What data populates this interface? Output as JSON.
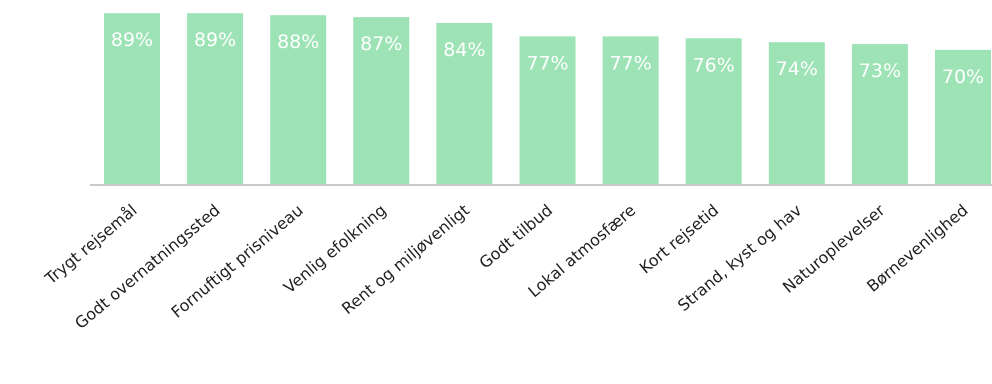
{
  "chart_data": {
    "type": "bar",
    "categories": [
      "Trygt rejsemål",
      "Godt overnatningssted",
      "Fornuftigt prisniveau",
      "Venlig efolkning",
      "Rent og miljøvenligt",
      "Godt tilbud",
      "Lokal atmosfære",
      "Kort rejsetid",
      "Strand, kyst og hav",
      "Naturoplevelser",
      "Børnevenlighed"
    ],
    "values": [
      89,
      89,
      88,
      87,
      84,
      77,
      77,
      76,
      74,
      73,
      70
    ],
    "data_labels": [
      "89%",
      "89%",
      "88%",
      "87%",
      "84%",
      "77%",
      "77%",
      "76%",
      "74%",
      "73%",
      "70%"
    ],
    "unit": "%",
    "ylim": [
      0,
      100
    ],
    "grid": false,
    "legend": "none",
    "colors": {
      "bar": "#9de3b6",
      "data_label": "#ffffff",
      "axis": "#c9c9c9",
      "tick_label": "#1f1f1f"
    }
  }
}
